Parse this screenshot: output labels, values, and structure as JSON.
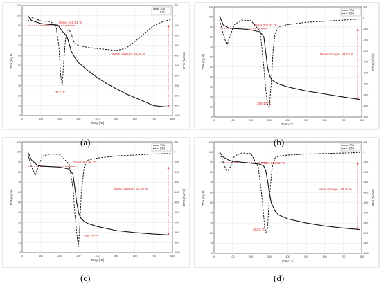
{
  "figure": {
    "panel_labels": [
      "(a)",
      "(b)",
      "(c)",
      "(d)"
    ]
  },
  "chart_data": [
    {
      "type": "line",
      "panel": "(a)",
      "xlabel": "Temp [°C]",
      "ylabel": "TGA (mg %)",
      "y2label": "DTG (%/min)",
      "xlim": [
        0,
        800
      ],
      "ylim": [
        0,
        110
      ],
      "y2lim": [
        -1000,
        100
      ],
      "xticks": [
        0,
        100,
        200,
        300,
        400,
        500,
        600,
        700,
        800
      ],
      "yticks": [
        0,
        10,
        20,
        30,
        40,
        50,
        60,
        70,
        80,
        90,
        100,
        110
      ],
      "y2ticks": [
        -1000,
        -900,
        -800,
        -700,
        -600,
        -500,
        -400,
        -300,
        -200,
        -100,
        0,
        100
      ],
      "legend": [
        "TGA",
        "DTG"
      ],
      "legend_position": "top-right",
      "series": [
        {
          "name": "TGA",
          "style": "solid",
          "x": [
            30,
            50,
            100,
            150,
            190,
            200,
            210,
            220,
            230,
            240,
            250,
            260,
            280,
            300,
            350,
            400,
            450,
            500,
            550,
            600,
            650,
            700,
            750,
            790
          ],
          "y": [
            100,
            95,
            92,
            91,
            90.5,
            88,
            85,
            83,
            81,
            78,
            72,
            65,
            58,
            53,
            45,
            38,
            32,
            27,
            22,
            18,
            14,
            10,
            9,
            8.5
          ]
        },
        {
          "name": "DTG",
          "style": "dashed",
          "x": [
            30,
            50,
            80,
            100,
            150,
            180,
            195,
            205,
            213,
            220,
            230,
            240,
            250,
            260,
            280,
            300,
            350,
            400,
            450,
            500,
            550,
            600,
            650,
            700,
            750,
            790
          ],
          "y": [
            -60,
            -20,
            -40,
            -55,
            -60,
            -100,
            -300,
            -600,
            -700,
            -500,
            -250,
            -150,
            -140,
            -180,
            -280,
            -300,
            -320,
            -330,
            -340,
            -350,
            -330,
            -260,
            -180,
            -100,
            -60,
            -40
          ]
        }
      ],
      "annotations": [
        {
          "text": "Onset 249.81 °C"
        },
        {
          "text": "213 °C"
        },
        {
          "text": "Mass change= 91.53 %"
        }
      ]
    },
    {
      "type": "line",
      "panel": "(b)",
      "xlabel": "Temp [°C]",
      "ylabel": "TGA (mg %)",
      "y2label": "DTG (%/min)",
      "xlim": [
        0,
        800
      ],
      "ylim": [
        0,
        110
      ],
      "y2lim": [
        -900,
        100
      ],
      "xticks": [
        0,
        100,
        200,
        300,
        400,
        500,
        600,
        700,
        800
      ],
      "yticks": [
        0,
        10,
        20,
        30,
        40,
        50,
        60,
        70,
        80,
        90,
        100,
        110
      ],
      "y2ticks": [
        -900,
        -800,
        -700,
        -600,
        -500,
        -400,
        -300,
        -200,
        -100,
        0,
        100
      ],
      "legend": [
        "TGA",
        "DTG"
      ],
      "legend_position": "top-right",
      "series": [
        {
          "name": "TGA",
          "style": "solid",
          "x": [
            30,
            50,
            80,
            100,
            150,
            200,
            250,
            270,
            280,
            290,
            300,
            310,
            330,
            350,
            400,
            500,
            600,
            700,
            790
          ],
          "y": [
            101,
            92,
            89,
            88.5,
            88,
            87,
            85,
            80,
            65,
            50,
            42,
            38,
            35,
            33,
            30,
            26,
            23,
            20,
            17.5
          ]
        },
        {
          "name": "DTG",
          "style": "dashed",
          "x": [
            30,
            50,
            70,
            90,
            110,
            150,
            200,
            250,
            270,
            280,
            290,
            299,
            310,
            320,
            330,
            350,
            400,
            500,
            600,
            700,
            790
          ],
          "y": [
            -20,
            -150,
            -250,
            -150,
            -60,
            -20,
            -25,
            -120,
            -450,
            -650,
            -780,
            -820,
            -600,
            -300,
            -150,
            -80,
            -60,
            -40,
            -30,
            -20,
            -10
          ]
        }
      ],
      "annotations": [
        {
          "text": "Onset 262.43 °C"
        },
        {
          "text": "299.17 °C"
        },
        {
          "text": "Mass change= 83.10 %"
        }
      ]
    },
    {
      "type": "line",
      "panel": "(c)",
      "xlabel": "Temp [°C]",
      "ylabel": "TGA (mg %)",
      "y2label": "DTG (%/min)",
      "xlim": [
        0,
        800
      ],
      "ylim": [
        0,
        110
      ],
      "y2lim": [
        -1000,
        100
      ],
      "xticks": [
        0,
        100,
        200,
        300,
        400,
        500,
        600,
        700,
        800
      ],
      "yticks": [
        0,
        10,
        20,
        30,
        40,
        50,
        60,
        70,
        80,
        90,
        100,
        110
      ],
      "y2ticks": [
        -1000,
        -900,
        -800,
        -700,
        -600,
        -500,
        -400,
        -300,
        -200,
        -100,
        0,
        100
      ],
      "legend": [
        "TGA",
        "DTG"
      ],
      "legend_position": "top-right",
      "series": [
        {
          "name": "TGA",
          "style": "solid",
          "x": [
            30,
            50,
            80,
            100,
            150,
            200,
            250,
            270,
            280,
            290,
            300,
            310,
            330,
            350,
            400,
            500,
            600,
            700,
            790
          ],
          "y": [
            100,
            92,
            87,
            86,
            85.5,
            85,
            83,
            78,
            65,
            50,
            40,
            35,
            31,
            29,
            26,
            22,
            20,
            18.5,
            17.5
          ]
        },
        {
          "name": "DTG",
          "style": "dashed",
          "x": [
            30,
            50,
            70,
            90,
            110,
            150,
            200,
            250,
            270,
            280,
            290,
            299,
            305,
            315,
            330,
            350,
            400,
            500,
            600,
            700,
            790
          ],
          "y": [
            -20,
            -150,
            -230,
            -120,
            -40,
            -20,
            -25,
            -120,
            -350,
            -600,
            -800,
            -940,
            -800,
            -400,
            -150,
            -80,
            -60,
            -40,
            -30,
            -20,
            -15
          ]
        }
      ],
      "annotations": [
        {
          "text": "Onset 267.06 °C"
        },
        {
          "text": "299.17 °C"
        },
        {
          "text": "Mass change= 82.59 %"
        }
      ]
    },
    {
      "type": "line",
      "panel": "(d)",
      "xlabel": "Temp [°C]",
      "ylabel": "TGA (mg %)",
      "y2label": "DTG (%/min)",
      "xlim": [
        0,
        800
      ],
      "ylim": [
        0,
        110
      ],
      "y2lim": [
        -1000,
        100
      ],
      "xticks": [
        0,
        100,
        200,
        300,
        400,
        500,
        600,
        700,
        800
      ],
      "yticks": [
        0,
        10,
        20,
        30,
        40,
        50,
        60,
        70,
        80,
        90,
        100,
        110
      ],
      "y2ticks": [
        -1000,
        -900,
        -800,
        -700,
        -600,
        -500,
        -400,
        -300,
        -200,
        -100,
        0,
        100
      ],
      "legend": [
        "TGA",
        "DTG"
      ],
      "legend_position": "top-right",
      "series": [
        {
          "name": "TGA",
          "style": "solid",
          "x": [
            30,
            50,
            80,
            100,
            150,
            200,
            250,
            270,
            280,
            290,
            300,
            310,
            330,
            350,
            400,
            500,
            600,
            700,
            790
          ],
          "y": [
            100,
            95,
            92,
            91,
            90,
            89,
            88,
            86,
            82,
            72,
            60,
            50,
            42,
            38,
            34,
            30,
            27,
            25,
            23.5
          ]
        },
        {
          "name": "DTG",
          "style": "dashed",
          "x": [
            30,
            50,
            70,
            90,
            110,
            150,
            200,
            240,
            260,
            275,
            283,
            290,
            300,
            315,
            330,
            350,
            400,
            500,
            600,
            700,
            790
          ],
          "y": [
            -10,
            -100,
            -200,
            -140,
            -40,
            -10,
            -15,
            -150,
            -450,
            -750,
            -800,
            -750,
            -450,
            -150,
            -60,
            -40,
            -30,
            -20,
            -15,
            -10,
            -5
          ]
        }
      ],
      "annotations": [
        {
          "text": "Onset 314.63 °C"
        },
        {
          "text": "283.5 °C"
        },
        {
          "text": "Mass change= 76.76 %"
        }
      ]
    }
  ]
}
